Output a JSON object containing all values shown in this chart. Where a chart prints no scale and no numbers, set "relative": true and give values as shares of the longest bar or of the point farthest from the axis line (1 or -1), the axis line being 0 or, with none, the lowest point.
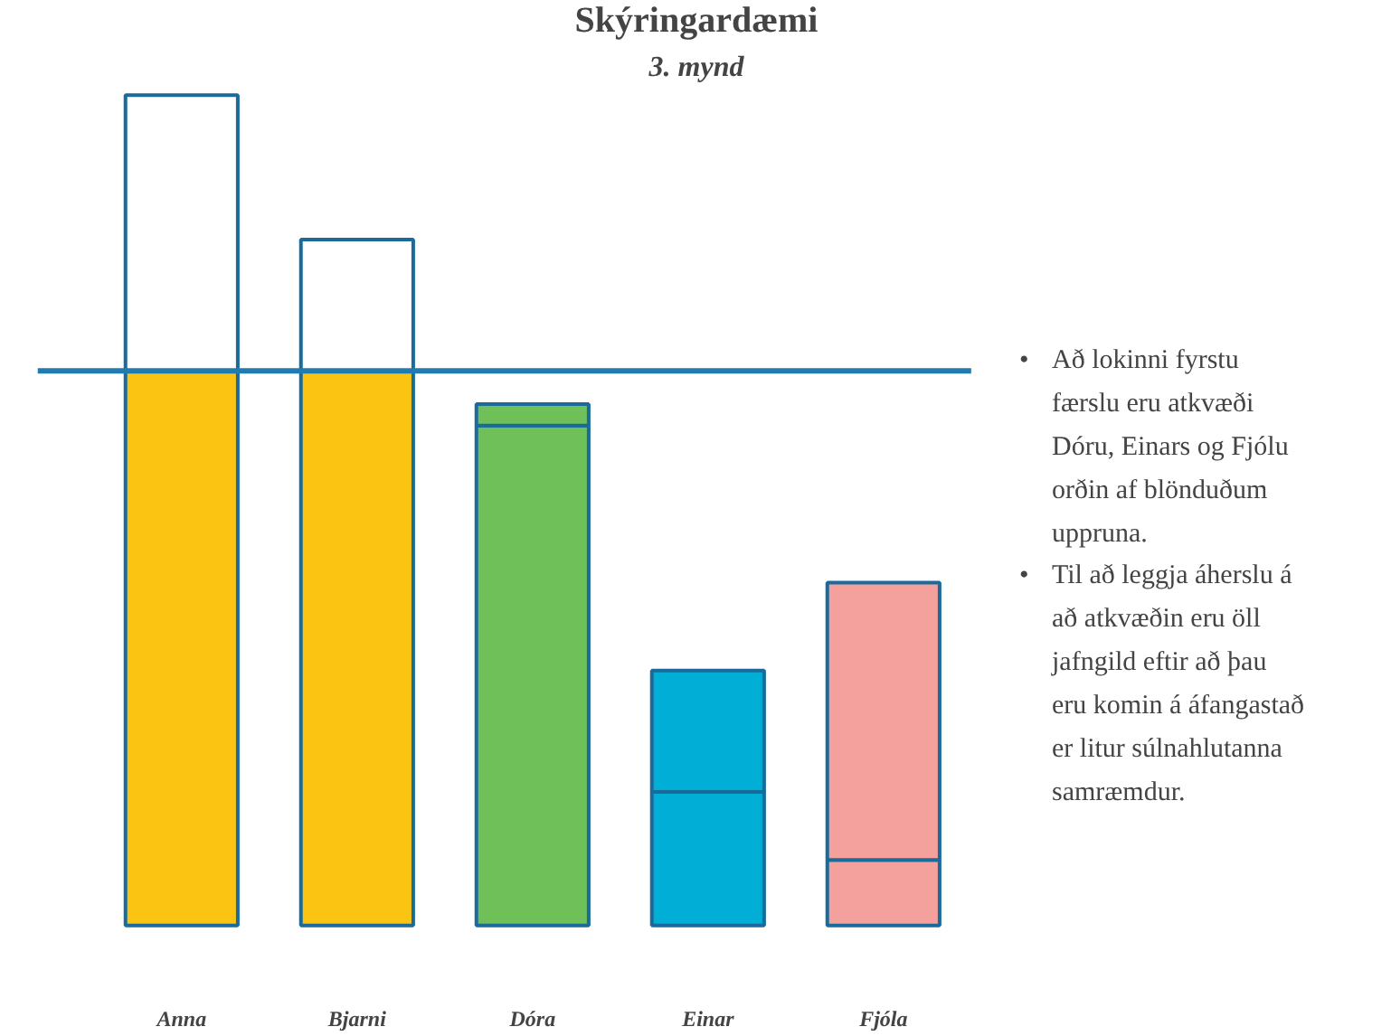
{
  "chart_data": {
    "type": "bar",
    "title": "Skýringardæmi",
    "subtitle": "3. mynd",
    "relative": true,
    "stacked": true,
    "categories": [
      "Anna",
      "Bjarni",
      "Dóra",
      "Einar",
      "Fjóla"
    ],
    "series": [
      {
        "colors": [
          "#fcc412",
          "#fcc412",
          "#70c05a",
          "#00aed6",
          "#f4a09c"
        ],
        "values": [
          0.668,
          0.668,
          0.602,
          0.161,
          0.079
        ]
      },
      {
        "colors": [
          "#ffffff",
          "#ffffff",
          "#70c05a",
          "#00aed6",
          "#f4a09c"
        ],
        "values": [
          0.332,
          0.158,
          0.026,
          0.146,
          0.334
        ]
      }
    ],
    "ref_lines": [
      {
        "axis": "y",
        "value": 0.668,
        "color": "#1f7bb0"
      }
    ],
    "annotations": [
      "• Að lokinni fyrstu færslu eru atkvæði Dóru, Einars og Fjólu orðin af blönduðum uppruna.",
      "• Til að leggja áherslu á að atkvæðin eru öll jafngild eftir að þau eru komin á áfangastað er litur súlnahlutanna samræmdur."
    ],
    "grid": false
  }
}
